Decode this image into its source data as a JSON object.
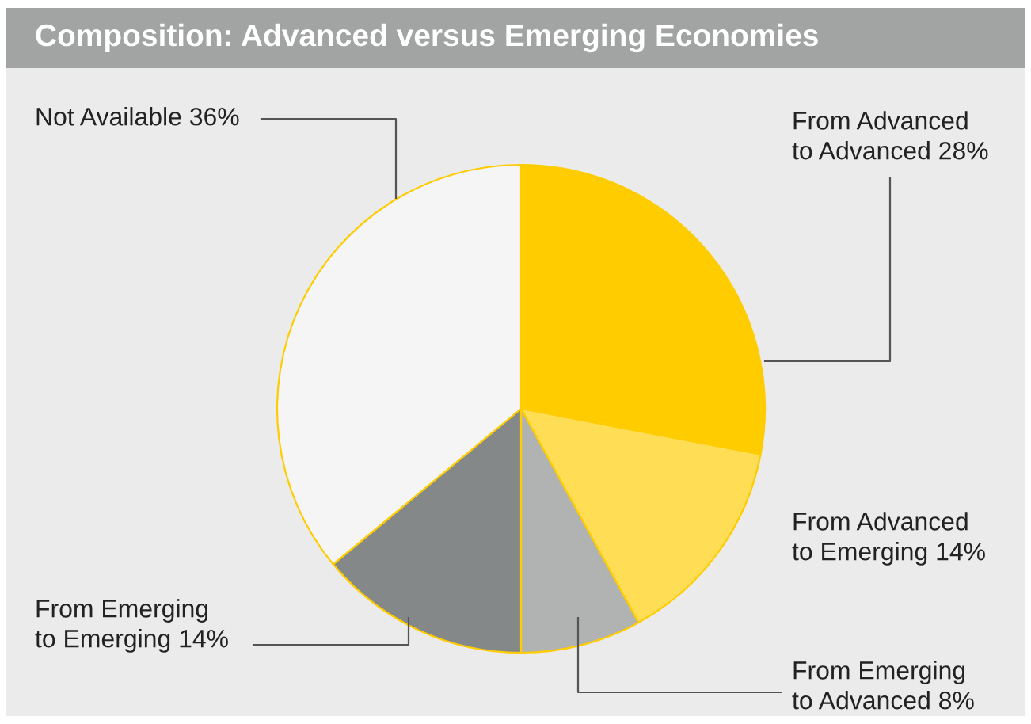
{
  "chart_data": {
    "type": "pie",
    "title": "Composition: Advanced versus Emerging Economies",
    "categories": [
      "From Advanced\nto Advanced",
      "From Advanced\nto Emerging",
      "From Emerging\nto Advanced",
      "From Emerging\nto Emerging",
      "Not Available"
    ],
    "values": [
      28,
      14,
      8,
      14,
      36
    ],
    "value_labels": [
      "28%",
      "14%",
      "8%",
      "14%",
      "36%"
    ],
    "colors": [
      "#ffcc00",
      "#ffdd55",
      "#b1b3b2",
      "#858889",
      "#f4f5f4"
    ],
    "legend": false
  }
}
